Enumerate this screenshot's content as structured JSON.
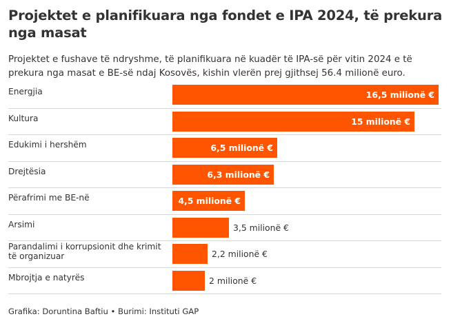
{
  "title": "Projektet e planifikuara nga fondet e IPA 2024, të prekura nga masat",
  "subtitle": "Projektet e fushave të ndryshme, të planifikuara në kuadër të IPA-së për vitin 2024 e të prekura nga masat e BE-së ndaj Kosovës, kishin vlerën prej gjithsej 56.4 milionë euro.",
  "source": "Grafika: Doruntina Baftiu • Burimi: Instituti GAP",
  "colors": {
    "bar": "#ff5500",
    "text": "#333333",
    "divider": "#d6d6d6"
  },
  "chart_data": {
    "type": "bar",
    "orientation": "horizontal",
    "categories": [
      "Energjia",
      "Kultura",
      "Edukimi i hershëm",
      "Drejtësia",
      "Përafrimi me BE-në",
      "Arsimi",
      "Parandalimi i korrupsionit dhe krimit të organizuar",
      "Mbrojtja e natyrës"
    ],
    "values": [
      16.5,
      15,
      6.5,
      6.3,
      4.5,
      3.5,
      2.2,
      2
    ],
    "labels": [
      "16,5 milionë €",
      "15 milionë €",
      "6,5 milionë €",
      "6,3 milionë €",
      "4,5 milionë €",
      "3,5 milionë €",
      "2,2 milionë €",
      "2 milionë €"
    ],
    "label_inside": [
      true,
      true,
      true,
      true,
      true,
      false,
      false,
      false
    ],
    "xlim": [
      0,
      16.5
    ],
    "grid": false,
    "legend": "none"
  }
}
